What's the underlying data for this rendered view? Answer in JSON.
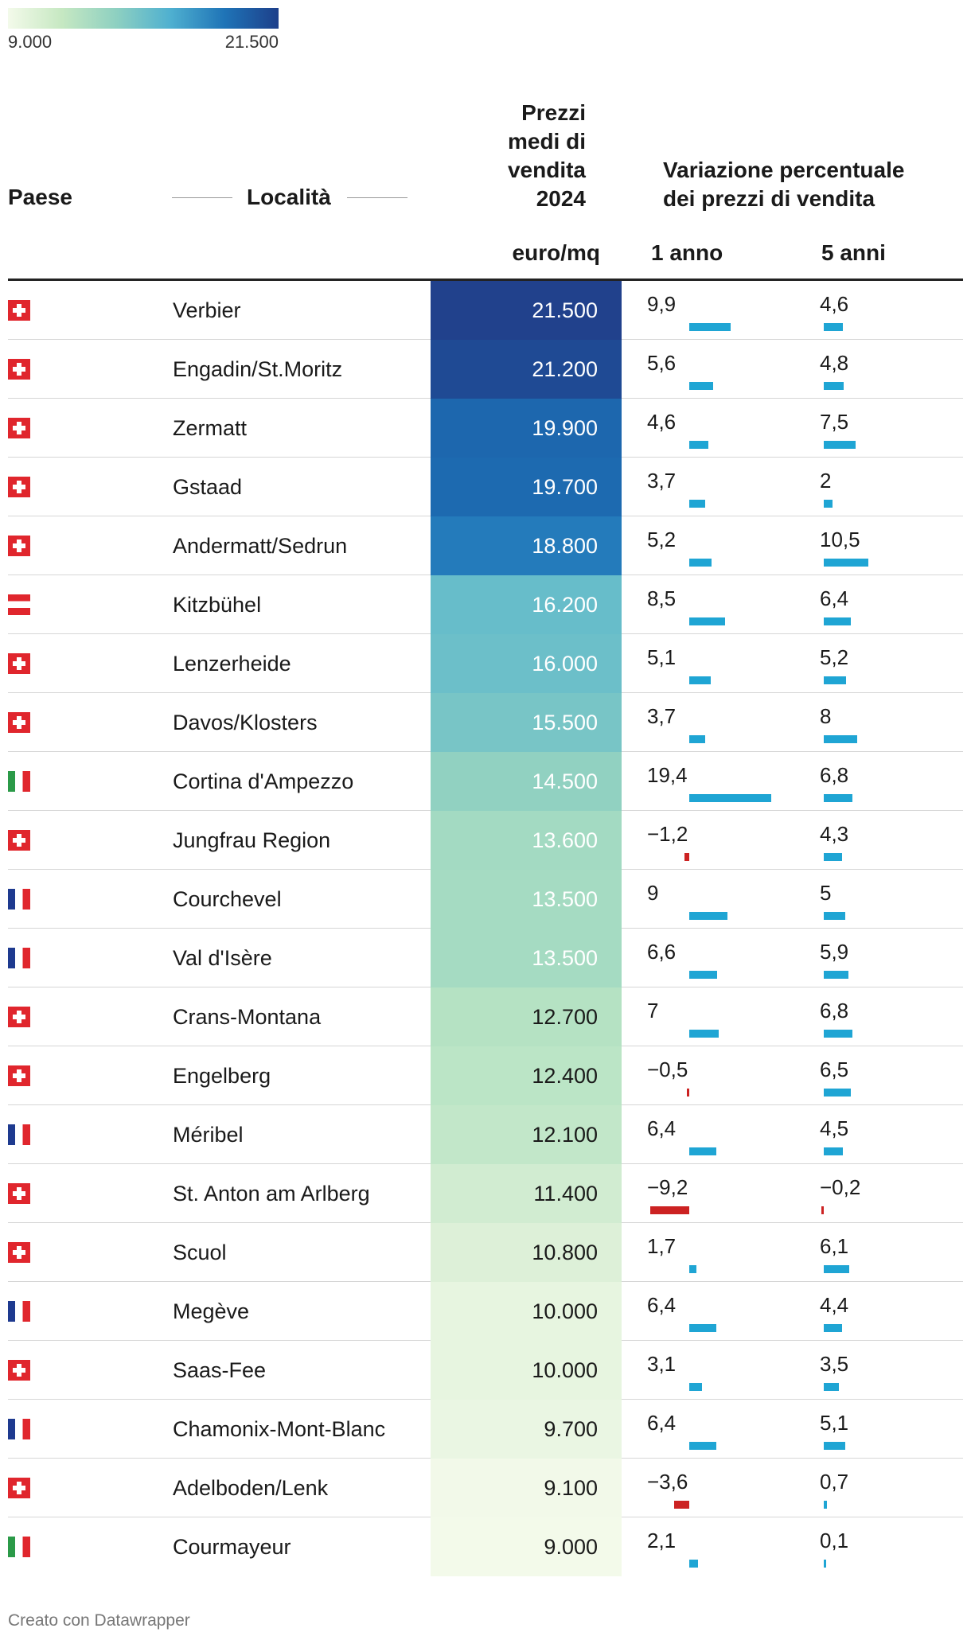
{
  "legend": {
    "min_label": "9.000",
    "max_label": "21.500",
    "min": 9000,
    "max": 21500
  },
  "headers": {
    "country": "Paese",
    "location": "Località",
    "price_line1": "Prezzi",
    "price_line2": "medi di",
    "price_line3": "vendita",
    "price_line4": "2024",
    "change_line1": "Variazione percentuale",
    "change_line2": "dei prezzi di vendita",
    "unit": "euro/mq",
    "col_1y": "1 anno",
    "col_5y": "5 anni"
  },
  "colors": {
    "positive": "#1fa5d4",
    "negative": "#cc2222"
  },
  "footer": "Creato con Datawrapper",
  "chart_data": {
    "type": "table",
    "columns": [
      "Paese",
      "Località",
      "euro/mq",
      "1 anno",
      "5 anni"
    ],
    "rows": [
      {
        "flag": "switzerland-flag-icon",
        "country": "ch",
        "location": "Verbier",
        "price": 21500,
        "price_label": "21.500",
        "y1": 9.9,
        "y1_label": "9,9",
        "y5": 4.6,
        "y5_label": "4,6"
      },
      {
        "flag": "switzerland-flag-icon",
        "country": "ch",
        "location": "Engadin/St.Moritz",
        "price": 21200,
        "price_label": "21.200",
        "y1": 5.6,
        "y1_label": "5,6",
        "y5": 4.8,
        "y5_label": "4,8"
      },
      {
        "flag": "switzerland-flag-icon",
        "country": "ch",
        "location": "Zermatt",
        "price": 19900,
        "price_label": "19.900",
        "y1": 4.6,
        "y1_label": "4,6",
        "y5": 7.5,
        "y5_label": "7,5"
      },
      {
        "flag": "switzerland-flag-icon",
        "country": "ch",
        "location": "Gstaad",
        "price": 19700,
        "price_label": "19.700",
        "y1": 3.7,
        "y1_label": "3,7",
        "y5": 2,
        "y5_label": "2"
      },
      {
        "flag": "switzerland-flag-icon",
        "country": "ch",
        "location": "Andermatt/Sedrun",
        "price": 18800,
        "price_label": "18.800",
        "y1": 5.2,
        "y1_label": "5,2",
        "y5": 10.5,
        "y5_label": "10,5"
      },
      {
        "flag": "austria-flag-icon",
        "country": "at",
        "location": "Kitzbühel",
        "price": 16200,
        "price_label": "16.200",
        "y1": 8.5,
        "y1_label": "8,5",
        "y5": 6.4,
        "y5_label": "6,4"
      },
      {
        "flag": "switzerland-flag-icon",
        "country": "ch",
        "location": "Lenzerheide",
        "price": 16000,
        "price_label": "16.000",
        "y1": 5.1,
        "y1_label": "5,1",
        "y5": 5.2,
        "y5_label": "5,2"
      },
      {
        "flag": "switzerland-flag-icon",
        "country": "ch",
        "location": "Davos/Klosters",
        "price": 15500,
        "price_label": "15.500",
        "y1": 3.7,
        "y1_label": "3,7",
        "y5": 8,
        "y5_label": "8"
      },
      {
        "flag": "italy-flag-icon",
        "country": "it",
        "location": "Cortina d'Ampezzo",
        "price": 14500,
        "price_label": "14.500",
        "y1": 19.4,
        "y1_label": "19,4",
        "y5": 6.8,
        "y5_label": "6,8"
      },
      {
        "flag": "switzerland-flag-icon",
        "country": "ch",
        "location": "Jungfrau Region",
        "price": 13600,
        "price_label": "13.600",
        "y1": -1.2,
        "y1_label": "−1,2",
        "y5": 4.3,
        "y5_label": "4,3"
      },
      {
        "flag": "france-flag-icon",
        "country": "fr",
        "location": "Courchevel",
        "price": 13500,
        "price_label": "13.500",
        "y1": 9,
        "y1_label": "9",
        "y5": 5,
        "y5_label": "5"
      },
      {
        "flag": "france-flag-icon",
        "country": "fr",
        "location": "Val d'Isère",
        "price": 13500,
        "price_label": "13.500",
        "y1": 6.6,
        "y1_label": "6,6",
        "y5": 5.9,
        "y5_label": "5,9"
      },
      {
        "flag": "switzerland-flag-icon",
        "country": "ch",
        "location": "Crans-Montana",
        "price": 12700,
        "price_label": "12.700",
        "y1": 7,
        "y1_label": "7",
        "y5": 6.8,
        "y5_label": "6,8"
      },
      {
        "flag": "switzerland-flag-icon",
        "country": "ch",
        "location": "Engelberg",
        "price": 12400,
        "price_label": "12.400",
        "y1": -0.5,
        "y1_label": "−0,5",
        "y5": 6.5,
        "y5_label": "6,5"
      },
      {
        "flag": "france-flag-icon",
        "country": "fr",
        "location": "Méribel",
        "price": 12100,
        "price_label": "12.100",
        "y1": 6.4,
        "y1_label": "6,4",
        "y5": 4.5,
        "y5_label": "4,5"
      },
      {
        "flag": "switzerland-flag-icon",
        "country": "ch",
        "location": "St. Anton am Arlberg",
        "price": 11400,
        "price_label": "11.400",
        "y1": -9.2,
        "y1_label": "−9,2",
        "y5": -0.2,
        "y5_label": "−0,2"
      },
      {
        "flag": "switzerland-flag-icon",
        "country": "ch",
        "location": "Scuol",
        "price": 10800,
        "price_label": "10.800",
        "y1": 1.7,
        "y1_label": "1,7",
        "y5": 6.1,
        "y5_label": "6,1"
      },
      {
        "flag": "france-flag-icon",
        "country": "fr",
        "location": "Megève",
        "price": 10000,
        "price_label": "10.000",
        "y1": 6.4,
        "y1_label": "6,4",
        "y5": 4.4,
        "y5_label": "4,4"
      },
      {
        "flag": "switzerland-flag-icon",
        "country": "ch",
        "location": "Saas-Fee",
        "price": 10000,
        "price_label": "10.000",
        "y1": 3.1,
        "y1_label": "3,1",
        "y5": 3.5,
        "y5_label": "3,5"
      },
      {
        "flag": "france-flag-icon",
        "country": "fr",
        "location": "Chamonix-Mont-Blanc",
        "price": 9700,
        "price_label": "9.700",
        "y1": 6.4,
        "y1_label": "6,4",
        "y5": 5.1,
        "y5_label": "5,1"
      },
      {
        "flag": "switzerland-flag-icon",
        "country": "ch",
        "location": "Adelboden/Lenk",
        "price": 9100,
        "price_label": "9.100",
        "y1": -3.6,
        "y1_label": "−3,6",
        "y5": 0.7,
        "y5_label": "0,7"
      },
      {
        "flag": "italy-flag-icon",
        "country": "it",
        "location": "Courmayeur",
        "price": 9000,
        "price_label": "9.000",
        "y1": 2.1,
        "y1_label": "2,1",
        "y5": 0.1,
        "y5_label": "0,1"
      }
    ]
  }
}
